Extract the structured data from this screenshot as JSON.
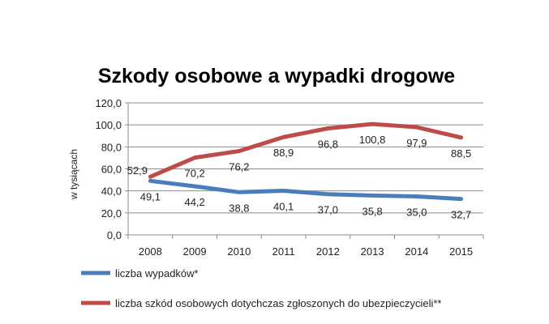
{
  "chart_data": {
    "type": "line",
    "title": "Szkody osobowe a wypadki drogowe",
    "xlabel": "",
    "ylabel": "w tysiącach",
    "categories": [
      "2008",
      "2009",
      "2010",
      "2011",
      "2012",
      "2013",
      "2014",
      "2015"
    ],
    "ylim": [
      0,
      120
    ],
    "yticks": [
      "0,0",
      "20,0",
      "40,0",
      "60,0",
      "80,0",
      "100,0",
      "120,0"
    ],
    "grid": true,
    "legend": "bottom",
    "series": [
      {
        "name": "liczba wypadków*",
        "color": "#4a7ebb",
        "values": [
          49.1,
          44.2,
          38.8,
          40.1,
          37.0,
          35.8,
          35.0,
          32.7
        ],
        "labels": [
          "49,1",
          "44,2",
          "38,8",
          "40,1",
          "37,0",
          "35,8",
          "35,0",
          "32,7"
        ]
      },
      {
        "name": "liczba szkód osobowych dotychczas zgłoszonych do ubezpieczycieli**",
        "color": "#be4b48",
        "values": [
          52.9,
          70.2,
          76.2,
          88.9,
          96.8,
          100.8,
          97.9,
          88.5
        ],
        "labels": [
          "52,9",
          "70,2",
          "76,2",
          "88,9",
          "96,8",
          "100,8",
          "97,9",
          "88,5"
        ]
      }
    ]
  }
}
